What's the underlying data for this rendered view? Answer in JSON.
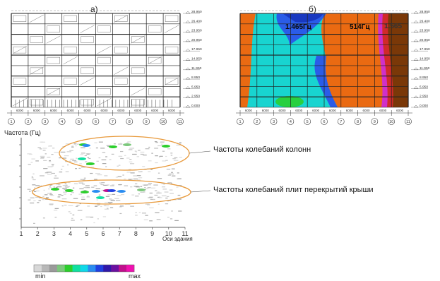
{
  "panels": {
    "a_label": "а)",
    "b_label": "б)",
    "freq_labels": [
      "1.465Гц",
      "514Гц",
      "1.565"
    ]
  },
  "elevations": [
    "28.950",
    "26.400",
    "23.950",
    "20.950",
    "17.950",
    "14.950",
    "11.950",
    "8.950",
    "5.950",
    "2.950",
    "0.000"
  ],
  "dims": [
    "6000",
    "6000",
    "6000",
    "6000",
    "6000",
    "6000",
    "6000",
    "6000",
    "6000",
    "6000"
  ],
  "axis_numbers": [
    "1",
    "2",
    "3",
    "4",
    "5",
    "6",
    "7",
    "8",
    "9",
    "10",
    "11"
  ],
  "spectrogram": {
    "y_title": "Частота (Гц)",
    "x_title": "Оси здания",
    "x_ticks": [
      "1",
      "2",
      "3",
      "4",
      "5",
      "6",
      "7",
      "8",
      "9",
      "10",
      "11"
    ]
  },
  "annotations": {
    "columns": "Частоты колебаний колонн",
    "slabs": "Частоты колебаний плит перекрытий крыши"
  },
  "colorbar": {
    "min_label": "min",
    "max_label": "max",
    "colors": [
      "#d8d8d8",
      "#b8b8b8",
      "#9a9a9a",
      "#7cc87c",
      "#2ccf2c",
      "#10e0a0",
      "#10d8e8",
      "#2a8cf0",
      "#2040e0",
      "#3018a8",
      "#6a10a0",
      "#c0108c",
      "#f010b0"
    ]
  },
  "heatmap_colors": {
    "orange": "#ea6a12",
    "cyan": "#18d4d0",
    "blue": "#2a5ce8",
    "darkblue": "#1838c0",
    "brown": "#7a3808",
    "red": "#d02a2a",
    "magenta": "#d030c8",
    "green": "#28d040"
  }
}
